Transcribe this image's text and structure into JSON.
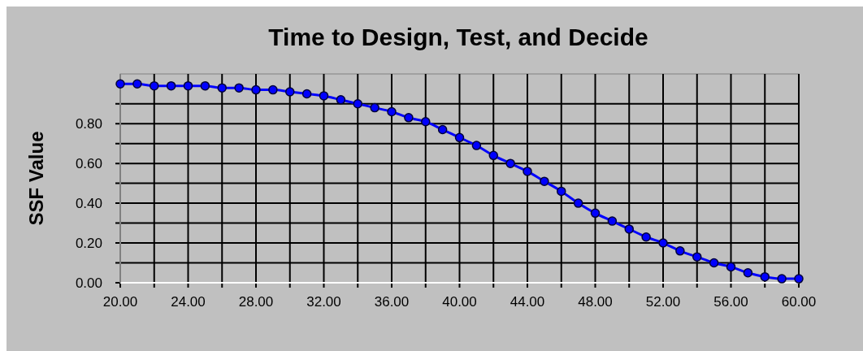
{
  "chart_data": {
    "type": "line",
    "title": "Time to Design, Test, and Decide",
    "ylabel": "SSF Value",
    "x": [
      20,
      21,
      22,
      23,
      24,
      25,
      26,
      27,
      28,
      29,
      30,
      31,
      32,
      33,
      34,
      35,
      36,
      37,
      38,
      39,
      40,
      41,
      42,
      43,
      44,
      45,
      46,
      47,
      48,
      49,
      50,
      51,
      52,
      53,
      54,
      55,
      56,
      57,
      58,
      59,
      60
    ],
    "series": [
      {
        "color": "#0000ff",
        "values": [
          1.0,
          1.0,
          0.99,
          0.99,
          0.99,
          0.99,
          0.98,
          0.98,
          0.97,
          0.97,
          0.96,
          0.95,
          0.94,
          0.92,
          0.9,
          0.88,
          0.86,
          0.83,
          0.81,
          0.77,
          0.73,
          0.69,
          0.64,
          0.6,
          0.56,
          0.51,
          0.46,
          0.4,
          0.35,
          0.31,
          0.27,
          0.23,
          0.2,
          0.16,
          0.13,
          0.1,
          0.08,
          0.05,
          0.03,
          0.02,
          0.02
        ]
      }
    ],
    "xlim": [
      20,
      60
    ],
    "ylim": [
      0,
      1.05
    ],
    "xticks": [
      {
        "value": 20,
        "label": "20.00"
      },
      {
        "value": 22,
        "label": null
      },
      {
        "value": 24,
        "label": "24.00"
      },
      {
        "value": 26,
        "label": null
      },
      {
        "value": 28,
        "label": "28.00"
      },
      {
        "value": 30,
        "label": null
      },
      {
        "value": 32,
        "label": "32.00"
      },
      {
        "value": 34,
        "label": null
      },
      {
        "value": 36,
        "label": "36.00"
      },
      {
        "value": 38,
        "label": null
      },
      {
        "value": 40,
        "label": "40.00"
      },
      {
        "value": 42,
        "label": null
      },
      {
        "value": 44,
        "label": "44.00"
      },
      {
        "value": 46,
        "label": null
      },
      {
        "value": 48,
        "label": "48.00"
      },
      {
        "value": 50,
        "label": null
      },
      {
        "value": 52,
        "label": "52.00"
      },
      {
        "value": 54,
        "label": null
      },
      {
        "value": 56,
        "label": "56.00"
      },
      {
        "value": 58,
        "label": null
      },
      {
        "value": 60,
        "label": "60.00"
      }
    ],
    "yticks": [
      {
        "value": 0,
        "label": "0.00"
      },
      {
        "value": 0.1,
        "label": null
      },
      {
        "value": 0.2,
        "label": "0.20"
      },
      {
        "value": 0.3,
        "label": null
      },
      {
        "value": 0.4,
        "label": "0.40"
      },
      {
        "value": 0.5,
        "label": null
      },
      {
        "value": 0.6,
        "label": "0.60"
      },
      {
        "value": 0.7,
        "label": null
      },
      {
        "value": 0.8,
        "label": "0.80"
      },
      {
        "value": 0.9,
        "label": null
      }
    ],
    "grid": true,
    "marker": "circle",
    "line_style": "solid"
  }
}
